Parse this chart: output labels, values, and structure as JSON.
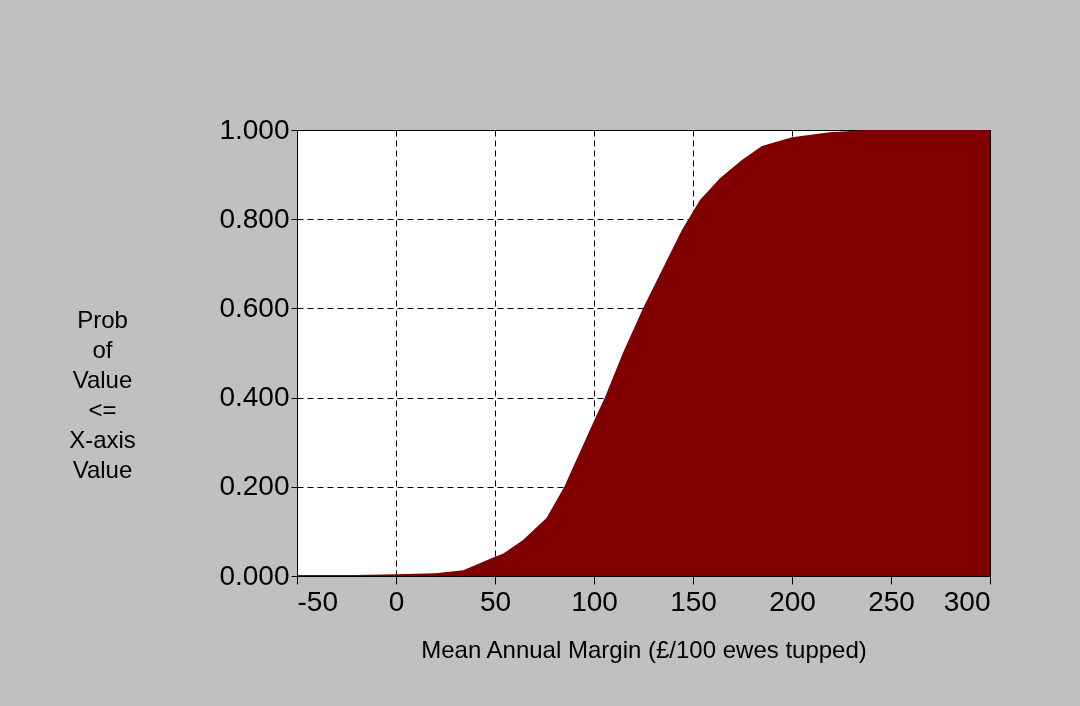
{
  "chart_data": {
    "type": "area",
    "xlabel": "Mean Annual Margin (£/100 ewes tupped)",
    "ylabel": "Prob of Value <= X-axis Value",
    "x": [
      -50,
      -20,
      0,
      20,
      34,
      50,
      54,
      64,
      76,
      85,
      99.5,
      105.5,
      114.6,
      124.7,
      134.8,
      144.4,
      153.5,
      163.6,
      174.7,
      184.8,
      200,
      219,
      238,
      300
    ],
    "series": [
      {
        "color": "#800000",
        "values": [
          0.002,
          0.002,
          0.004,
          0.006,
          0.013,
          0.043,
          0.05,
          0.08,
          0.13,
          0.2,
          0.343,
          0.4,
          0.5,
          0.6,
          0.69,
          0.776,
          0.843,
          0.892,
          0.933,
          0.964,
          0.984,
          0.995,
          1.0,
          1.0
        ]
      }
    ],
    "xlim": [
      -50,
      300
    ],
    "xticks": [
      -50,
      0,
      50,
      100,
      150,
      200,
      250,
      300
    ],
    "ylim": [
      0,
      1
    ],
    "yticks": [
      {
        "value": 0,
        "label": "0.000"
      },
      {
        "value": 0.2,
        "label": "0.200"
      },
      {
        "value": 0.4,
        "label": "0.400"
      },
      {
        "value": 0.6,
        "label": "0.600"
      },
      {
        "value": 0.8,
        "label": "0.800"
      },
      {
        "value": 1,
        "label": "1.000"
      }
    ],
    "grid": true
  }
}
